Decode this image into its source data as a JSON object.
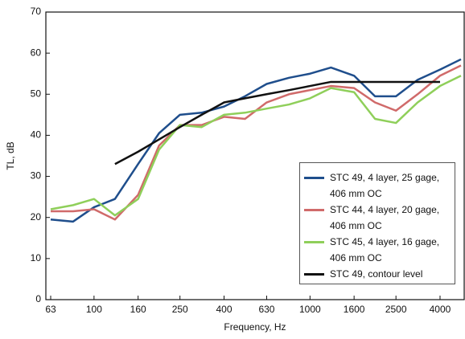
{
  "chart_data": {
    "type": "line",
    "x_label": "Frequency, Hz",
    "y_label": "TL, dB",
    "x": [
      63,
      80,
      100,
      125,
      160,
      200,
      250,
      315,
      400,
      500,
      630,
      800,
      1000,
      1250,
      1600,
      2000,
      2500,
      3150,
      4000,
      5000
    ],
    "xscale": "log",
    "xlim": [
      63,
      5000
    ],
    "xticks": [
      63,
      100,
      160,
      250,
      400,
      630,
      1000,
      1600,
      2500,
      4000
    ],
    "ylim": [
      0,
      70
    ],
    "yticks": [
      0,
      10,
      20,
      30,
      40,
      50,
      60,
      70
    ],
    "legend": "lower right",
    "series": [
      {
        "name": "STC 49, 4 layer, 25 gage, 406 mm OC",
        "color": "#1f4e8c",
        "values": [
          19.5,
          19,
          22.5,
          24.5,
          33,
          40.5,
          45,
          45.5,
          47,
          49.5,
          52.5,
          54,
          55,
          56.5,
          54.5,
          49.5,
          49.5,
          53.5,
          56,
          58.5
        ]
      },
      {
        "name": "STC 44, 4 layer, 20 gage, 406 mm OC",
        "color": "#d06a6a",
        "values": [
          21.5,
          21.5,
          22,
          19.5,
          25.5,
          37.5,
          42.5,
          42.5,
          44.5,
          44,
          48,
          50,
          51,
          52,
          51.5,
          48,
          46,
          50,
          54.5,
          57
        ]
      },
      {
        "name": "STC 45, 4 layer, 16 gage, 406 mm OC",
        "color": "#8fcf5a",
        "values": [
          22,
          23,
          24.5,
          20.5,
          24.5,
          36.5,
          42.5,
          42,
          45,
          45.5,
          46.5,
          47.5,
          49,
          51.5,
          50.5,
          44,
          43,
          48,
          52,
          54.5
        ]
      },
      {
        "name": "STC 49, contour level",
        "color": "#111111",
        "values": [
          null,
          null,
          null,
          33,
          36,
          39,
          42,
          45,
          48,
          49,
          50,
          51,
          52,
          53,
          53,
          53,
          53,
          53,
          53,
          null
        ]
      }
    ]
  }
}
